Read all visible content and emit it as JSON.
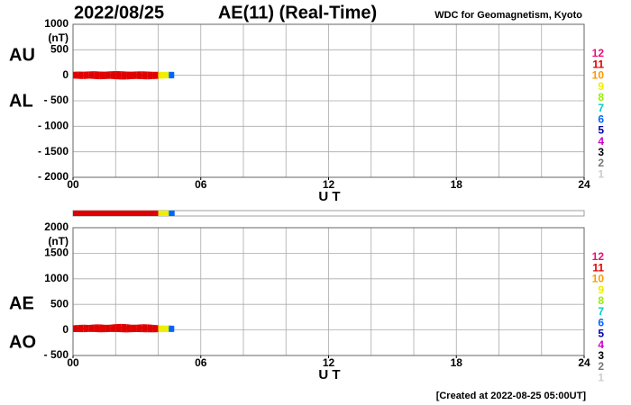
{
  "header": {
    "date": "2022/08/25",
    "title": "AE(11) (Real-Time)",
    "source": "WDC for Geomagnetism, Kyoto"
  },
  "footer": "[Created at 2022-08-25 05:00UT]",
  "legend": [
    {
      "label": "12",
      "color": "#e8107a"
    },
    {
      "label": "11",
      "color": "#e00000"
    },
    {
      "label": "10",
      "color": "#ff9900"
    },
    {
      "label": "9",
      "color": "#eeee00"
    },
    {
      "label": "8",
      "color": "#99ee00"
    },
    {
      "label": "7",
      "color": "#00cccc"
    },
    {
      "label": "6",
      "color": "#0066ff"
    },
    {
      "label": "5",
      "color": "#0000aa"
    },
    {
      "label": "4",
      "color": "#cc00cc"
    },
    {
      "label": "3",
      "color": "#000000"
    },
    {
      "label": "2",
      "color": "#777777"
    },
    {
      "label": "1",
      "color": "#cccccc"
    }
  ],
  "chart_data": [
    {
      "type": "line",
      "unit": "(nT)",
      "xlabel": "U T",
      "x": [
        0,
        0.25,
        0.5,
        0.75,
        1,
        1.25,
        1.5,
        1.75,
        2,
        2.25,
        2.5,
        2.75,
        3,
        3.25,
        3.5,
        3.75,
        4,
        4.25,
        4.5,
        4.75
      ],
      "colors": [
        "#e00000",
        "#e00000",
        "#e00000",
        "#e00000",
        "#e00000",
        "#e00000",
        "#e00000",
        "#e00000",
        "#e00000",
        "#e00000",
        "#e00000",
        "#e00000",
        "#e00000",
        "#e00000",
        "#e00000",
        "#e00000",
        "#eeee00",
        "#eeee00",
        "#0066ff",
        "#0066ff"
      ],
      "series": [
        {
          "name": "AU",
          "values": [
            25,
            30,
            28,
            32,
            35,
            30,
            27,
            33,
            38,
            36,
            30,
            28,
            31,
            34,
            29,
            26,
            24,
            22,
            25,
            23
          ]
        },
        {
          "name": "AL",
          "values": [
            -20,
            -25,
            -30,
            -22,
            -28,
            -35,
            -30,
            -26,
            -32,
            -38,
            -40,
            -30,
            -28,
            -33,
            -36,
            -30,
            -25,
            -20,
            -18,
            -15
          ]
        }
      ],
      "xlim": [
        0,
        24
      ],
      "xticks": [
        {
          "value": 0,
          "label": "00"
        },
        {
          "value": 6,
          "label": "06"
        },
        12,
        18,
        24
      ],
      "xgrid": [
        2,
        4,
        6,
        8,
        10,
        12,
        14,
        16,
        18,
        20,
        22
      ],
      "ylim": [
        -2000,
        1000
      ],
      "yticks": [
        {
          "value": -2000,
          "label": "- 2000"
        },
        {
          "value": -1500,
          "label": "- 1500"
        },
        {
          "value": -1000,
          "label": "- 1000"
        },
        {
          "value": -500,
          "label": "- 500"
        },
        0,
        500,
        1000
      ],
      "grid": true
    },
    {
      "type": "line",
      "unit": "(nT)",
      "xlabel": "U T",
      "x": [
        0,
        0.25,
        0.5,
        0.75,
        1,
        1.25,
        1.5,
        1.75,
        2,
        2.25,
        2.5,
        2.75,
        3,
        3.25,
        3.5,
        3.75,
        4,
        4.25,
        4.5,
        4.75
      ],
      "colors": [
        "#e00000",
        "#e00000",
        "#e00000",
        "#e00000",
        "#e00000",
        "#e00000",
        "#e00000",
        "#e00000",
        "#e00000",
        "#e00000",
        "#e00000",
        "#e00000",
        "#e00000",
        "#e00000",
        "#e00000",
        "#e00000",
        "#eeee00",
        "#eeee00",
        "#0066ff",
        "#0066ff"
      ],
      "series": [
        {
          "name": "AE",
          "values": [
            45,
            55,
            58,
            54,
            63,
            65,
            57,
            59,
            70,
            74,
            70,
            58,
            59,
            67,
            65,
            56,
            49,
            42,
            43,
            38
          ]
        },
        {
          "name": "AO",
          "values": [
            2.5,
            2.5,
            -1,
            5,
            3.5,
            -2.5,
            -1.5,
            3.5,
            3,
            -1,
            -5,
            -1,
            1.5,
            0.5,
            -3.5,
            -2,
            -0.5,
            1,
            3.5,
            4
          ]
        }
      ],
      "xlim": [
        0,
        24
      ],
      "xticks": [
        {
          "value": 0,
          "label": "00"
        },
        {
          "value": 6,
          "label": "06"
        },
        12,
        18,
        24
      ],
      "xgrid": [
        2,
        4,
        6,
        8,
        10,
        12,
        14,
        16,
        18,
        20,
        22
      ],
      "ylim": [
        -500,
        2000
      ],
      "yticks": [
        {
          "value": -500,
          "label": "- 500"
        },
        0,
        500,
        1000,
        1500,
        2000
      ],
      "grid": true
    }
  ]
}
